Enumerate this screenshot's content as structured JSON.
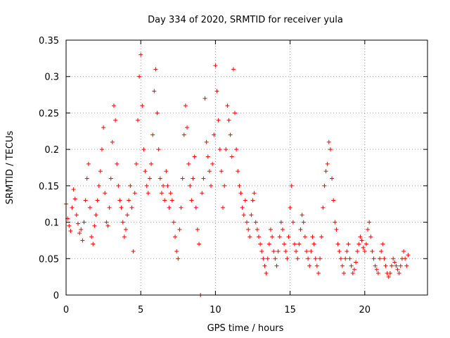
{
  "chart_data": {
    "type": "scatter",
    "title": "Day 334 of 2020, SRMTID for receiver yula",
    "xlabel": "GPS time / hours",
    "ylabel": "SRMTID / TECUs",
    "xlim": [
      0,
      24.2
    ],
    "ylim": [
      0,
      0.35
    ],
    "xticks": [
      0,
      5,
      10,
      15,
      20
    ],
    "xtick_labels": [
      "0",
      "5",
      "10",
      "15",
      "20"
    ],
    "yticks": [
      0,
      0.05,
      0.1,
      0.15,
      0.2,
      0.25,
      0.3,
      0.35
    ],
    "ytick_labels": [
      "0",
      "0.05",
      "0.1",
      "0.15",
      "0.2",
      "0.25",
      "0.3",
      "0.35"
    ],
    "grid": true,
    "marker": "+",
    "color": "#ff0000",
    "series": [
      {
        "name": "SRMTID",
        "points": [
          [
            0.0,
            0.125
          ],
          [
            0.1,
            0.105
          ],
          [
            0.2,
            0.095
          ],
          [
            0.3,
            0.088
          ],
          [
            0.4,
            0.12
          ],
          [
            0.5,
            0.145
          ],
          [
            0.6,
            0.132
          ],
          [
            0.7,
            0.11
          ],
          [
            0.8,
            0.098
          ],
          [
            0.9,
            0.085
          ],
          [
            1.0,
            0.09
          ],
          [
            1.1,
            0.075
          ],
          [
            1.2,
            0.1
          ],
          [
            1.3,
            0.13
          ],
          [
            1.4,
            0.16
          ],
          [
            1.5,
            0.18
          ],
          [
            1.6,
            0.12
          ],
          [
            1.7,
            0.08
          ],
          [
            1.8,
            0.07
          ],
          [
            1.9,
            0.095
          ],
          [
            2.0,
            0.11
          ],
          [
            2.1,
            0.13
          ],
          [
            2.2,
            0.15
          ],
          [
            2.3,
            0.17
          ],
          [
            2.4,
            0.2
          ],
          [
            2.5,
            0.23
          ],
          [
            2.6,
            0.14
          ],
          [
            2.7,
            0.1
          ],
          [
            2.8,
            0.095
          ],
          [
            2.9,
            0.12
          ],
          [
            3.0,
            0.16
          ],
          [
            3.1,
            0.21
          ],
          [
            3.2,
            0.26
          ],
          [
            3.3,
            0.24
          ],
          [
            3.4,
            0.18
          ],
          [
            3.5,
            0.15
          ],
          [
            3.6,
            0.13
          ],
          [
            3.7,
            0.12
          ],
          [
            3.8,
            0.1
          ],
          [
            3.9,
            0.08
          ],
          [
            4.0,
            0.09
          ],
          [
            4.1,
            0.11
          ],
          [
            4.2,
            0.13
          ],
          [
            4.3,
            0.15
          ],
          [
            4.4,
            0.12
          ],
          [
            4.5,
            0.06
          ],
          [
            4.6,
            0.14
          ],
          [
            4.7,
            0.18
          ],
          [
            4.8,
            0.24
          ],
          [
            4.9,
            0.3
          ],
          [
            5.0,
            0.33
          ],
          [
            5.1,
            0.26
          ],
          [
            5.2,
            0.2
          ],
          [
            5.3,
            0.17
          ],
          [
            5.4,
            0.15
          ],
          [
            5.5,
            0.14
          ],
          [
            5.6,
            0.16
          ],
          [
            5.7,
            0.18
          ],
          [
            5.8,
            0.22
          ],
          [
            5.9,
            0.28
          ],
          [
            6.0,
            0.31
          ],
          [
            6.1,
            0.25
          ],
          [
            6.2,
            0.2
          ],
          [
            6.3,
            0.16
          ],
          [
            6.4,
            0.14
          ],
          [
            6.5,
            0.15
          ],
          [
            6.6,
            0.13
          ],
          [
            6.7,
            0.17
          ],
          [
            6.8,
            0.15
          ],
          [
            6.9,
            0.12
          ],
          [
            7.0,
            0.14
          ],
          [
            7.1,
            0.13
          ],
          [
            7.2,
            0.1
          ],
          [
            7.3,
            0.08
          ],
          [
            7.4,
            0.06
          ],
          [
            7.5,
            0.05
          ],
          [
            7.6,
            0.09
          ],
          [
            7.7,
            0.12
          ],
          [
            7.8,
            0.16
          ],
          [
            7.9,
            0.22
          ],
          [
            8.0,
            0.26
          ],
          [
            8.1,
            0.23
          ],
          [
            8.2,
            0.18
          ],
          [
            8.3,
            0.15
          ],
          [
            8.4,
            0.13
          ],
          [
            8.5,
            0.16
          ],
          [
            8.6,
            0.19
          ],
          [
            8.7,
            0.12
          ],
          [
            8.8,
            0.09
          ],
          [
            8.9,
            0.07
          ],
          [
            9.0,
            0.0
          ],
          [
            9.1,
            0.14
          ],
          [
            9.2,
            0.16
          ],
          [
            9.3,
            0.27
          ],
          [
            9.4,
            0.21
          ],
          [
            9.5,
            0.19
          ],
          [
            9.6,
            0.17
          ],
          [
            9.7,
            0.15
          ],
          [
            9.8,
            0.18
          ],
          [
            9.9,
            0.22
          ],
          [
            10.0,
            0.315
          ],
          [
            10.1,
            0.28
          ],
          [
            10.2,
            0.24
          ],
          [
            10.3,
            0.2
          ],
          [
            10.4,
            0.17
          ],
          [
            10.5,
            0.12
          ],
          [
            10.6,
            0.15
          ],
          [
            10.7,
            0.2
          ],
          [
            10.8,
            0.26
          ],
          [
            10.9,
            0.24
          ],
          [
            11.0,
            0.22
          ],
          [
            11.1,
            0.19
          ],
          [
            11.2,
            0.31
          ],
          [
            11.3,
            0.25
          ],
          [
            11.4,
            0.2
          ],
          [
            11.5,
            0.17
          ],
          [
            11.6,
            0.15
          ],
          [
            11.7,
            0.14
          ],
          [
            11.8,
            0.12
          ],
          [
            11.9,
            0.11
          ],
          [
            12.0,
            0.13
          ],
          [
            12.1,
            0.1
          ],
          [
            12.2,
            0.09
          ],
          [
            12.3,
            0.08
          ],
          [
            12.4,
            0.11
          ],
          [
            12.5,
            0.13
          ],
          [
            12.6,
            0.14
          ],
          [
            12.7,
            0.1
          ],
          [
            12.8,
            0.09
          ],
          [
            12.9,
            0.08
          ],
          [
            13.0,
            0.07
          ],
          [
            13.1,
            0.06
          ],
          [
            13.2,
            0.05
          ],
          [
            13.3,
            0.04
          ],
          [
            13.4,
            0.03
          ],
          [
            13.5,
            0.05
          ],
          [
            13.6,
            0.07
          ],
          [
            13.7,
            0.09
          ],
          [
            13.8,
            0.08
          ],
          [
            13.9,
            0.06
          ],
          [
            14.0,
            0.05
          ],
          [
            14.1,
            0.04
          ],
          [
            14.2,
            0.06
          ],
          [
            14.3,
            0.08
          ],
          [
            14.4,
            0.1
          ],
          [
            14.5,
            0.09
          ],
          [
            14.6,
            0.07
          ],
          [
            14.7,
            0.06
          ],
          [
            14.8,
            0.05
          ],
          [
            14.9,
            0.08
          ],
          [
            15.0,
            0.12
          ],
          [
            15.1,
            0.15
          ],
          [
            15.2,
            0.1
          ],
          [
            15.3,
            0.07
          ],
          [
            15.4,
            0.06
          ],
          [
            15.5,
            0.05
          ],
          [
            15.6,
            0.07
          ],
          [
            15.7,
            0.09
          ],
          [
            15.8,
            0.11
          ],
          [
            15.9,
            0.1
          ],
          [
            16.0,
            0.08
          ],
          [
            16.1,
            0.06
          ],
          [
            16.2,
            0.05
          ],
          [
            16.3,
            0.04
          ],
          [
            16.4,
            0.06
          ],
          [
            16.5,
            0.08
          ],
          [
            16.6,
            0.07
          ],
          [
            16.7,
            0.05
          ],
          [
            16.8,
            0.04
          ],
          [
            16.9,
            0.03
          ],
          [
            17.0,
            0.05
          ],
          [
            17.1,
            0.08
          ],
          [
            17.2,
            0.12
          ],
          [
            17.3,
            0.15
          ],
          [
            17.4,
            0.17
          ],
          [
            17.5,
            0.18
          ],
          [
            17.6,
            0.21
          ],
          [
            17.7,
            0.2
          ],
          [
            17.8,
            0.16
          ],
          [
            17.9,
            0.13
          ],
          [
            18.0,
            0.1
          ],
          [
            18.1,
            0.09
          ],
          [
            18.2,
            0.07
          ],
          [
            18.3,
            0.06
          ],
          [
            18.4,
            0.05
          ],
          [
            18.5,
            0.04
          ],
          [
            18.6,
            0.03
          ],
          [
            18.7,
            0.05
          ],
          [
            18.8,
            0.06
          ],
          [
            18.9,
            0.07
          ],
          [
            19.0,
            0.05
          ],
          [
            19.1,
            0.04
          ],
          [
            19.2,
            0.03
          ],
          [
            19.3,
            0.035
          ],
          [
            19.4,
            0.045
          ],
          [
            19.5,
            0.06
          ],
          [
            19.6,
            0.07
          ],
          [
            19.7,
            0.08
          ],
          [
            19.8,
            0.075
          ],
          [
            19.9,
            0.065
          ],
          [
            20.0,
            0.06
          ],
          [
            20.1,
            0.07
          ],
          [
            20.2,
            0.09
          ],
          [
            20.3,
            0.1
          ],
          [
            20.4,
            0.08
          ],
          [
            20.5,
            0.06
          ],
          [
            20.6,
            0.05
          ],
          [
            20.7,
            0.04
          ],
          [
            20.8,
            0.035
          ],
          [
            20.9,
            0.03
          ],
          [
            21.0,
            0.05
          ],
          [
            21.1,
            0.06
          ],
          [
            21.2,
            0.07
          ],
          [
            21.3,
            0.05
          ],
          [
            21.4,
            0.04
          ],
          [
            21.5,
            0.03
          ],
          [
            21.6,
            0.025
          ],
          [
            21.7,
            0.03
          ],
          [
            21.8,
            0.04
          ],
          [
            21.9,
            0.05
          ],
          [
            22.0,
            0.045
          ],
          [
            22.1,
            0.04
          ],
          [
            22.2,
            0.035
          ],
          [
            22.3,
            0.03
          ],
          [
            22.4,
            0.04
          ],
          [
            22.5,
            0.05
          ],
          [
            22.6,
            0.06
          ],
          [
            22.7,
            0.05
          ],
          [
            22.8,
            0.04
          ],
          [
            22.9,
            0.055
          ]
        ]
      }
    ]
  }
}
